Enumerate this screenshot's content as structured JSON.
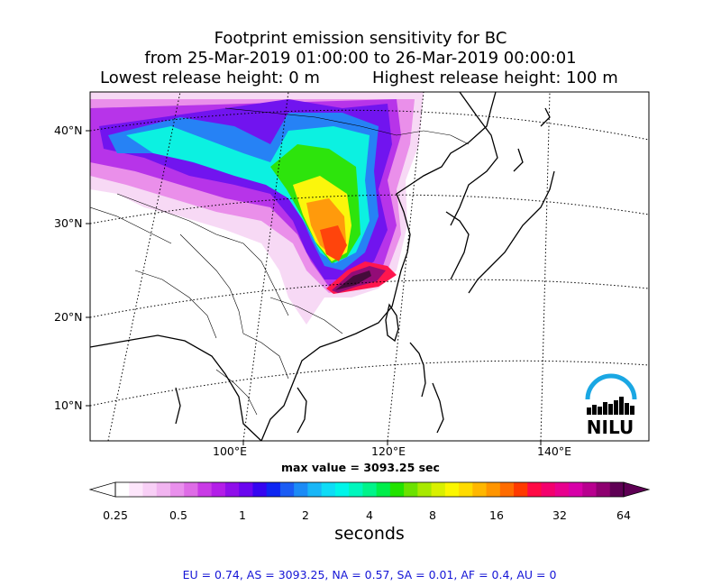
{
  "title": {
    "line1": "Footprint emission sensitivity for BC",
    "line2": "from 25-Mar-2019 01:00:00 to 26-Mar-2019 00:00:01",
    "lowest": "Lowest release height: 0 m",
    "highest": "Highest release height: 100 m"
  },
  "map": {
    "lat_labels": [
      "40°N",
      "30°N",
      "20°N",
      "10°N"
    ],
    "lon_labels": [
      "100°E",
      "120°E",
      "140°E"
    ],
    "logo_text": "NILU",
    "max_value": "max value = 3093.25 sec"
  },
  "colorbar": {
    "ticks": [
      "0.25",
      "0.5",
      "1",
      "2",
      "4",
      "8",
      "16",
      "32",
      "64"
    ],
    "unit": "seconds",
    "colors": [
      "#ffffff",
      "#fde6fb",
      "#f8cff6",
      "#f1b4f0",
      "#e990ec",
      "#de6ce6",
      "#c93be6",
      "#b31ee8",
      "#8f0fea",
      "#6a06ef",
      "#3505f0",
      "#0e26f2",
      "#1b5cf4",
      "#1c8bf6",
      "#19b6f7",
      "#0fdcf6",
      "#00f5e9",
      "#00f7bd",
      "#00f48a",
      "#00ee4b",
      "#22e300",
      "#6be200",
      "#a8e900",
      "#d9f000",
      "#fbf600",
      "#ffdb00",
      "#ffb700",
      "#ff9500",
      "#ff6c00",
      "#ff3a00",
      "#ff0a45",
      "#f3006d",
      "#e8008e",
      "#d700a8",
      "#b8008f",
      "#8e0070",
      "#5e0054"
    ]
  },
  "stats": "EU = 0.74,  AS = 3093.25,  NA = 0.57,  SA = 0.01,  AF = 0.4,  AU = 0"
}
